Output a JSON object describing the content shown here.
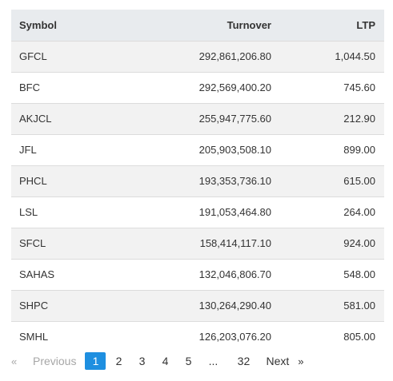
{
  "table": {
    "headers": {
      "symbol": "Symbol",
      "turnover": "Turnover",
      "ltp": "LTP"
    },
    "rows": [
      {
        "symbol": "GFCL",
        "turnover": "292,861,206.80",
        "ltp": "1,044.50"
      },
      {
        "symbol": "BFC",
        "turnover": "292,569,400.20",
        "ltp": "745.60"
      },
      {
        "symbol": "AKJCL",
        "turnover": "255,947,775.60",
        "ltp": "212.90"
      },
      {
        "symbol": "JFL",
        "turnover": "205,903,508.10",
        "ltp": "899.00"
      },
      {
        "symbol": "PHCL",
        "turnover": "193,353,736.10",
        "ltp": "615.00"
      },
      {
        "symbol": "LSL",
        "turnover": "191,053,464.80",
        "ltp": "264.00"
      },
      {
        "symbol": "SFCL",
        "turnover": "158,414,117.10",
        "ltp": "924.00"
      },
      {
        "symbol": "SAHAS",
        "turnover": "132,046,806.70",
        "ltp": "548.00"
      },
      {
        "symbol": "SHPC",
        "turnover": "130,264,290.40",
        "ltp": "581.00"
      },
      {
        "symbol": "SMHL",
        "turnover": "126,203,076.20",
        "ltp": "805.00"
      }
    ]
  },
  "pagination": {
    "prev_arrow": "«",
    "prev_label": "Previous",
    "pages": [
      "1",
      "2",
      "3",
      "4",
      "5"
    ],
    "ellipsis": "...",
    "last_page": "32",
    "next_label": "Next",
    "next_arrow": "»",
    "current_page": "1"
  },
  "colors": {
    "header_bg": "#e8ebee",
    "stripe_bg": "#f2f2f2",
    "active_page_bg": "#1e8fe0",
    "disabled_text": "#a7a7a7"
  }
}
